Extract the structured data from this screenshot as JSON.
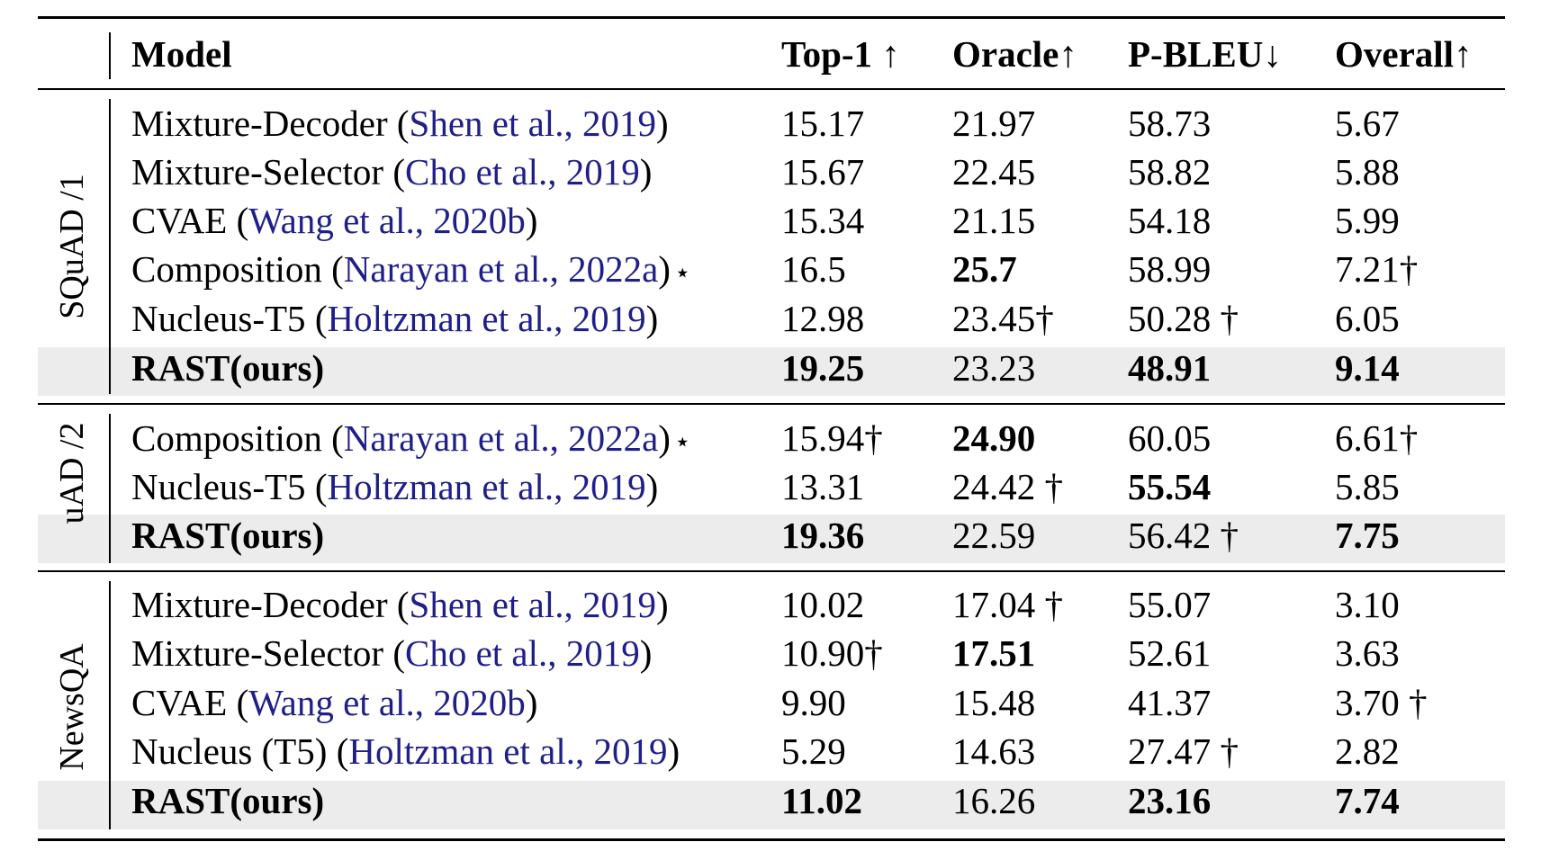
{
  "table": {
    "header": {
      "model": "Model",
      "top1": "Top-1 ↑",
      "oracle": "Oracle↑",
      "pbleu": "P-BLEU↓",
      "overall": "Overall↑"
    },
    "groups": [
      {
        "label": "SQuAD /1",
        "rows": [
          {
            "name": "Mixture-Decoder",
            "cite_open": " (",
            "cite": "Shen et al., 2019",
            "cite_close": ")",
            "star": "",
            "top1": "15.17",
            "oracle": "21.97",
            "pbleu": "58.73",
            "overall": "5.67"
          },
          {
            "name": "Mixture-Selector",
            "cite_open": " (",
            "cite": "Cho et al., 2019",
            "cite_close": ")",
            "star": "",
            "top1": "15.67",
            "oracle": "22.45",
            "pbleu": "58.82",
            "overall": "5.88"
          },
          {
            "name": "CVAE",
            "cite_open": " (",
            "cite": "Wang et al., 2020b",
            "cite_close": ")",
            "star": "",
            "top1": "15.34",
            "oracle": "21.15",
            "pbleu": "54.18",
            "overall": "5.99"
          },
          {
            "name": "Composition",
            "cite_open": " (",
            "cite": "Narayan et al., 2022a",
            "cite_close": ")",
            "star": "⋆",
            "top1": "16.5",
            "oracle": "25.7",
            "pbleu": "58.99",
            "overall": "7.21†"
          },
          {
            "name": "Nucleus-T5",
            "cite_open": " (",
            "cite": "Holtzman et al., 2019",
            "cite_close": ")",
            "star": "",
            "top1": "12.98",
            "oracle": "23.45†",
            "pbleu": "50.28 †",
            "overall": "6.05"
          },
          {
            "name": "RAST(ours)",
            "cite_open": "",
            "cite": "",
            "cite_close": "",
            "star": "",
            "top1": "19.25",
            "oracle": "23.23",
            "pbleu": "48.91",
            "overall": "9.14"
          }
        ]
      },
      {
        "label": "uAD /2",
        "rows": [
          {
            "name": "Composition",
            "cite_open": " (",
            "cite": "Narayan et al., 2022a",
            "cite_close": ")",
            "star": "⋆",
            "top1": "15.94†",
            "oracle": "24.90",
            "pbleu": "60.05",
            "overall": "6.61†"
          },
          {
            "name": "Nucleus-T5",
            "cite_open": " (",
            "cite": "Holtzman et al., 2019",
            "cite_close": ")",
            "star": "",
            "top1": "13.31",
            "oracle": "24.42 †",
            "pbleu": "55.54",
            "overall": "5.85"
          },
          {
            "name": "RAST(ours)",
            "cite_open": "",
            "cite": "",
            "cite_close": "",
            "star": "",
            "top1": "19.36",
            "oracle": "22.59",
            "pbleu": "56.42 †",
            "overall": "7.75"
          }
        ]
      },
      {
        "label": "NewsQA",
        "rows": [
          {
            "name": "Mixture-Decoder",
            "cite_open": " (",
            "cite": "Shen et al., 2019",
            "cite_close": ")",
            "star": "",
            "top1": "10.02",
            "oracle": "17.04 †",
            "pbleu": "55.07",
            "overall": "3.10"
          },
          {
            "name": "Mixture-Selector",
            "cite_open": " (",
            "cite": "Cho et al., 2019",
            "cite_close": ")",
            "star": "",
            "top1": "10.90†",
            "oracle": "17.51",
            "pbleu": "52.61",
            "overall": "3.63"
          },
          {
            "name": "CVAE",
            "cite_open": " (",
            "cite": "Wang et al., 2020b",
            "cite_close": ")",
            "star": "",
            "top1": "9.90",
            "oracle": "15.48",
            "pbleu": "41.37",
            "overall": "3.70 †"
          },
          {
            "name": "Nucleus (T5)",
            "cite_open": " (",
            "cite": "Holtzman et al., 2019",
            "cite_close": ")",
            "star": "",
            "top1": "5.29",
            "oracle": "14.63",
            "pbleu": "27.47 †",
            "overall": "2.82"
          },
          {
            "name": "RAST(ours)",
            "cite_open": "",
            "cite": "",
            "cite_close": "",
            "star": "",
            "top1": "11.02",
            "oracle": "16.26",
            "pbleu": "23.16",
            "overall": "7.74"
          }
        ]
      }
    ]
  }
}
